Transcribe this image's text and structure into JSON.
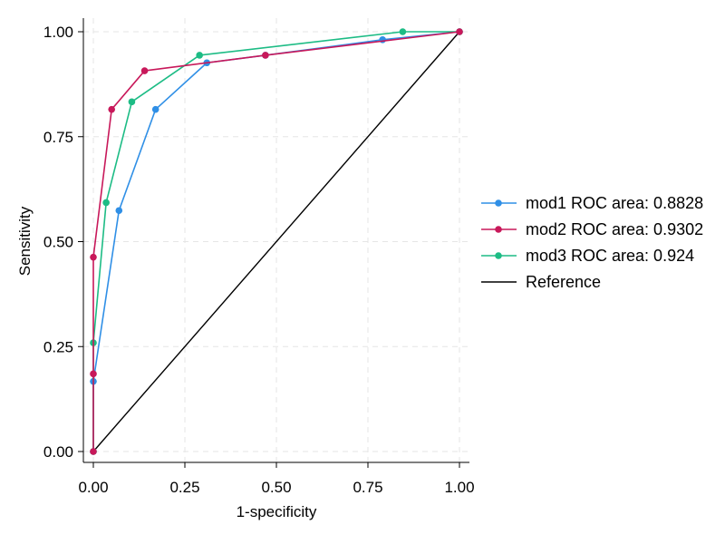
{
  "chart_data": {
    "type": "line",
    "xlabel": "1-specificity",
    "ylabel": "Sensitivity",
    "xlim": [
      0,
      1
    ],
    "ylim": [
      0,
      1
    ],
    "xticks": [
      "0.00",
      "0.25",
      "0.50",
      "0.75",
      "1.00"
    ],
    "yticks": [
      "0.00",
      "0.25",
      "0.50",
      "0.75",
      "1.00"
    ],
    "xtick_values": [
      0,
      0.25,
      0.5,
      0.75,
      1
    ],
    "ytick_values": [
      0,
      0.25,
      0.5,
      0.75,
      1
    ],
    "grid": true,
    "legend_position": "right",
    "series": [
      {
        "name": "mod1 ROC area: 0.8828",
        "color": "#2f8fe6",
        "marker": true,
        "x": [
          0,
          0,
          0.07,
          0.17,
          0.31,
          0.47,
          0.79,
          1.0
        ],
        "y": [
          0,
          0.167,
          0.574,
          0.815,
          0.926,
          0.944,
          0.981,
          1.0
        ]
      },
      {
        "name": "mod2 ROC area: 0.9302",
        "color": "#c8185a",
        "marker": true,
        "x": [
          0,
          0,
          0,
          0.05,
          0.14,
          0.47,
          1.0
        ],
        "y": [
          0,
          0.185,
          0.463,
          0.815,
          0.907,
          0.944,
          1.0
        ]
      },
      {
        "name": "mod3 ROC area: 0.924",
        "color": "#1dbc85",
        "marker": true,
        "x": [
          0,
          0,
          0.035,
          0.105,
          0.29,
          0.845,
          1.0
        ],
        "y": [
          0,
          0.259,
          0.593,
          0.833,
          0.944,
          1.0,
          1.0
        ]
      },
      {
        "name": "Reference",
        "color": "#000000",
        "marker": false,
        "x": [
          0,
          1
        ],
        "y": [
          0,
          1
        ]
      }
    ]
  }
}
